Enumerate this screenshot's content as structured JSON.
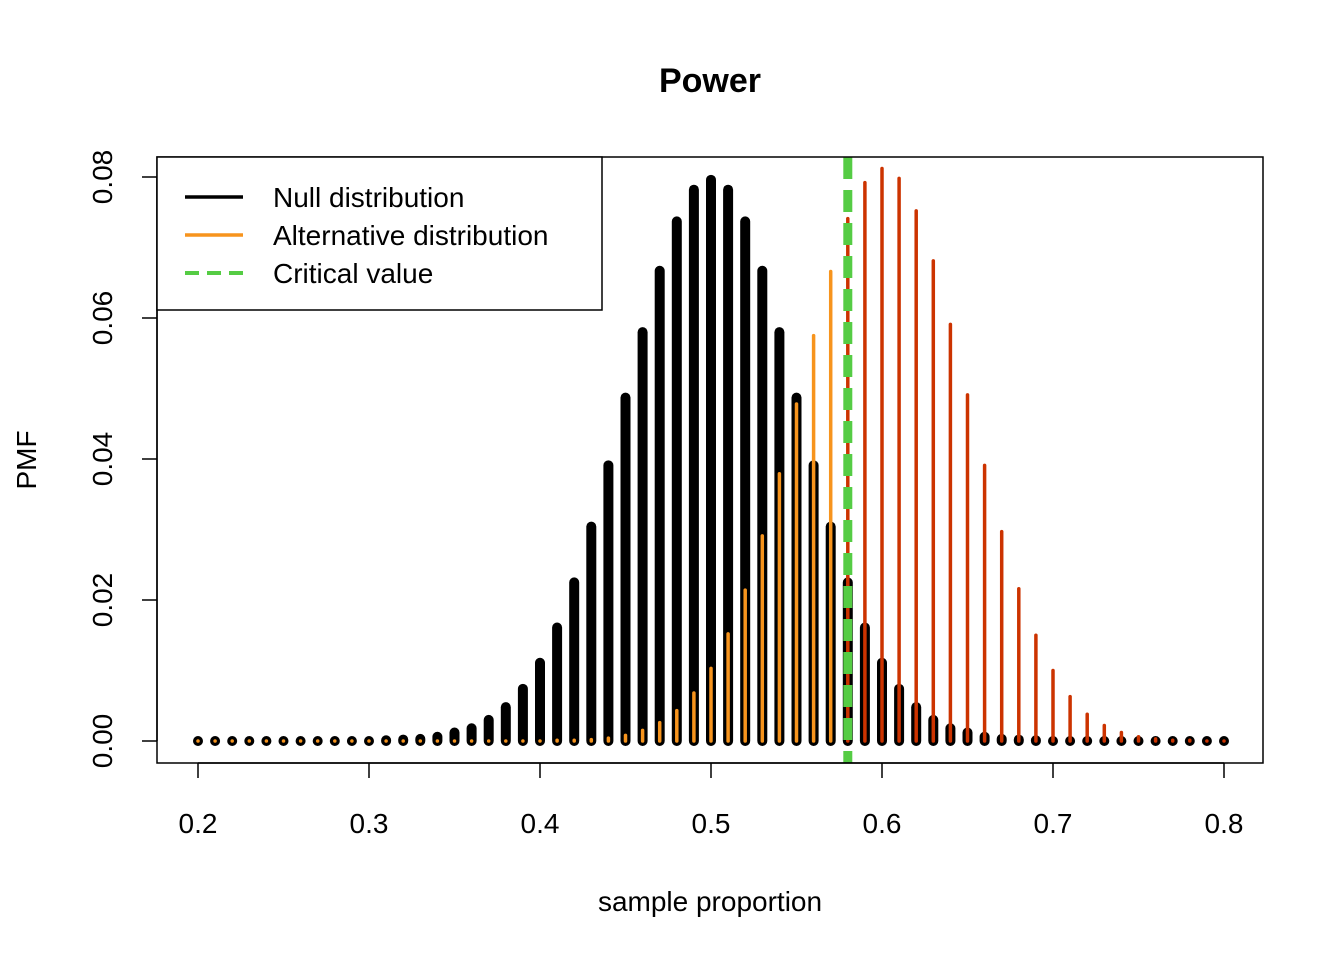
{
  "chart_data": {
    "type": "bar",
    "title": "Power",
    "xlabel": "sample proportion",
    "ylabel": "PMF",
    "xlim": [
      0.2,
      0.8
    ],
    "ylim": [
      0,
      0.08
    ],
    "x_ticks": [
      "0.2",
      "0.3",
      "0.4",
      "0.5",
      "0.6",
      "0.7",
      "0.8"
    ],
    "y_ticks": [
      "0.00",
      "0.02",
      "0.04",
      "0.06",
      "0.08"
    ],
    "x": [
      0.2,
      0.21,
      0.22,
      0.23,
      0.24,
      0.25,
      0.26,
      0.27,
      0.28,
      0.29,
      0.3,
      0.31,
      0.32,
      0.33,
      0.34,
      0.35,
      0.36,
      0.37,
      0.38,
      0.39,
      0.4,
      0.41,
      0.42,
      0.43,
      0.44,
      0.45,
      0.46,
      0.47,
      0.48,
      0.49,
      0.5,
      0.51,
      0.52,
      0.53,
      0.54,
      0.55,
      0.56,
      0.57,
      0.58,
      0.59,
      0.6,
      0.61,
      0.62,
      0.63,
      0.64,
      0.65,
      0.66,
      0.67,
      0.68,
      0.69,
      0.7,
      0.71,
      0.72,
      0.73,
      0.74,
      0.75,
      0.76,
      0.77,
      0.78,
      0.79,
      0.8
    ],
    "critical_value": 0.58,
    "series": [
      {
        "name": "Null distribution",
        "color": "#000000",
        "values": [
          0,
          0,
          0,
          0,
          0,
          0,
          0,
          0,
          0,
          0,
          0.0,
          0.0001,
          0.0002,
          0.0003,
          0.0006,
          0.0012,
          0.0018,
          0.003,
          0.0048,
          0.0074,
          0.0111,
          0.0161,
          0.0225,
          0.0304,
          0.0391,
          0.0487,
          0.058,
          0.0667,
          0.0737,
          0.0782,
          0.0796,
          0.0782,
          0.0737,
          0.0667,
          0.058,
          0.0487,
          0.0391,
          0.0304,
          0.0225,
          0.0161,
          0.0111,
          0.0074,
          0.0048,
          0.003,
          0.0018,
          0.0012,
          0.0006,
          0.0003,
          0.0002,
          0.0001,
          0,
          0,
          0,
          0,
          0,
          0,
          0,
          0,
          0,
          0,
          0
        ]
      },
      {
        "name": "Alternative distribution",
        "color": "#F7941D",
        "rejection_color": "#CC3300",
        "values": [
          0,
          0,
          0,
          0,
          0,
          0,
          0,
          0,
          0,
          0,
          0,
          0,
          0,
          0,
          0,
          0,
          0,
          0,
          0,
          0,
          0.0,
          0.0001,
          0.0001,
          0.0002,
          0.0004,
          0.0008,
          0.0015,
          0.0026,
          0.0043,
          0.0068,
          0.0103,
          0.0152,
          0.0214,
          0.0291,
          0.0379,
          0.0478,
          0.0575,
          0.0666,
          0.0741,
          0.0792,
          0.0812,
          0.0798,
          0.0752,
          0.0681,
          0.0591,
          0.0491,
          0.0391,
          0.0297,
          0.0216,
          0.015,
          0.01,
          0.0063,
          0.0038,
          0.0022,
          0.0012,
          0.0006,
          0.0003,
          0.0001,
          0.0001,
          0.0,
          0.0
        ]
      }
    ],
    "legend": {
      "position": "top-left",
      "entries": [
        {
          "label": "Null distribution",
          "color": "#000000",
          "style": "solid"
        },
        {
          "label": "Alternative distribution",
          "color": "#F7941D",
          "style": "solid"
        },
        {
          "label": "Critical value",
          "color": "#55CC44",
          "style": "dashed"
        }
      ]
    },
    "grid": false
  }
}
